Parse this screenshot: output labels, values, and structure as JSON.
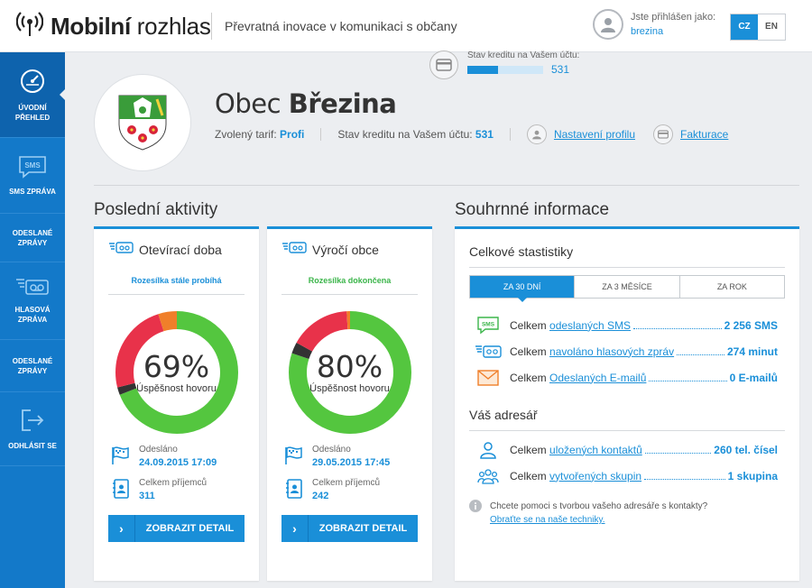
{
  "header": {
    "brand_bold": "Mobilní",
    "brand_light": " rozhlas",
    "tagline": "Převratná inovace v komunikaci s občany",
    "user_label": "Jste přihlášen jako:",
    "user_name": "brezina",
    "lang_active": "CZ",
    "lang_other": "EN"
  },
  "credit": {
    "label": "Stav kreditu na Vašem účtu:",
    "value": "531",
    "fill_fraction": 0.4
  },
  "sidebar": {
    "items": [
      {
        "label1": "ÚVODNÍ",
        "label2": "PŘEHLED",
        "icon": "dashboard-icon"
      },
      {
        "label1": "SMS ZPRÁVA",
        "label2": "",
        "icon": "sms-icon"
      },
      {
        "label1": "ODESLANÉ",
        "label2": "ZPRÁVY",
        "icon": ""
      },
      {
        "label1": "HLASOVÁ",
        "label2": "ZPRÁVA",
        "icon": "voicemail-icon"
      },
      {
        "label1": "ODESLANÉ",
        "label2": "ZPRÁVY",
        "icon": ""
      },
      {
        "label1": "ODHLÁSIT SE",
        "label2": "",
        "icon": "logout-icon"
      }
    ]
  },
  "profile": {
    "title_prefix": "Obec ",
    "title_name": "Březina",
    "tariff_label": "Zvolený tarif:",
    "tariff_value": "Profi",
    "credit_label": "Stav kreditu na Vašem účtu:",
    "credit_value": "531",
    "settings_link": "Nastavení profilu",
    "billing_link": "Fakturace"
  },
  "activities": {
    "title": "Poslední aktivity",
    "cards": [
      {
        "title": "Otevírací doba",
        "status": "Rozesílka stále probíhá",
        "percent_label": "69%",
        "percent_sub": "Úspěšnost hovoru",
        "segments": {
          "green": 0.69,
          "dark": 0.02,
          "red": 0.24,
          "orange": 0.05
        },
        "sent_label": "Odesláno",
        "sent_value": "24.09.2015 17:09",
        "recipients_label": "Celkem příjemců",
        "recipients_value": "311",
        "button": "ZOBRAZIT DETAIL"
      },
      {
        "title": "Výročí obce",
        "status": "Rozesílka dokončena",
        "percent_label": "80%",
        "percent_sub": "Úspěšnost hovoru",
        "segments": {
          "green": 0.8,
          "dark": 0.03,
          "red": 0.16,
          "orange": 0.01
        },
        "sent_label": "Odesláno",
        "sent_value": "29.05.2015 17:45",
        "recipients_label": "Celkem příjemců",
        "recipients_value": "242",
        "button": "ZOBRAZIT DETAIL"
      }
    ]
  },
  "summary": {
    "title": "Souhrnné informace",
    "stats_title": "Celkové stastistiky",
    "tabs": [
      "ZA 30 DNÍ",
      "ZA 3 MĚSÍCE",
      "ZA ROK"
    ],
    "stats": [
      {
        "prefix": "Celkem ",
        "link": "odeslaných SMS",
        "value": "2 256 SMS",
        "icon": "sms-icon"
      },
      {
        "prefix": "Celkem ",
        "link": "navoláno hlasových zpráv",
        "value": "274 minut",
        "icon": "voicemail-icon"
      },
      {
        "prefix": "Celkem ",
        "link": "Odeslaných E-mailů",
        "value": "0 E-mailů",
        "icon": "envelope-icon"
      }
    ],
    "address_title": "Váš adresář",
    "address": [
      {
        "prefix": "Celkem ",
        "link": "uložených kontaktů",
        "value": "260 tel. čísel",
        "icon": "user-icon"
      },
      {
        "prefix": "Celkem ",
        "link": "vytvořených skupin",
        "value": "1 skupina",
        "icon": "group-icon"
      }
    ],
    "help_text": "Chcete pomoci s tvorbou vašeho adresáře s kontakty?",
    "help_link": "Obraťte se na naše techniky."
  },
  "colors": {
    "accent": "#1a8fd8",
    "sidebar": "#1379c9",
    "green": "#54c63f",
    "red": "#e8324a",
    "orange": "#f07f2a",
    "dark": "#333333"
  }
}
